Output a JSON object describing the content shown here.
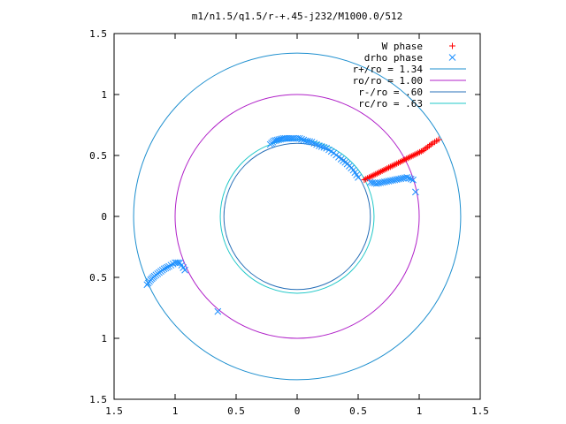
{
  "chart_data": {
    "type": "scatter",
    "title": "m1/n1.5/q1.5/r-+.45-j232/M1000.0/512",
    "xlabel": "",
    "ylabel": "",
    "xlim": [
      -1.5,
      1.5
    ],
    "ylim": [
      -1.5,
      1.5
    ],
    "x_ticks": [
      -1.5,
      -1,
      -0.5,
      0,
      0.5,
      1,
      1.5
    ],
    "y_ticks": [
      -1.5,
      -1,
      -0.5,
      0,
      0.5,
      1,
      1.5
    ],
    "x_tick_labels": [
      "1.5",
      "1",
      "0.5",
      "0",
      "0.5",
      "1",
      "1.5"
    ],
    "y_tick_labels": [
      "1.5",
      "1",
      "0.5",
      "0",
      "0.5",
      "1",
      "1.5"
    ],
    "grid": false,
    "legend_position": "top-right",
    "colors": {
      "w_phase": "#ff0000",
      "drho_phase": "#1e90ff",
      "r_plus": "#1e8fcf",
      "r_o": "#b020c8",
      "r_minus": "#2870b8",
      "r_c": "#20c8c8"
    },
    "series": [
      {
        "name": "W phase",
        "kind": "points",
        "marker": "+",
        "color": "#ff0000",
        "points": [
          [
            0.55,
            0.3
          ],
          [
            0.59,
            0.32
          ],
          [
            0.63,
            0.34
          ],
          [
            0.67,
            0.36
          ],
          [
            0.71,
            0.38
          ],
          [
            0.75,
            0.4
          ],
          [
            0.79,
            0.42
          ],
          [
            0.83,
            0.44
          ],
          [
            0.87,
            0.46
          ],
          [
            0.91,
            0.48
          ],
          [
            0.95,
            0.5
          ],
          [
            0.99,
            0.52
          ],
          [
            1.03,
            0.54
          ],
          [
            1.07,
            0.57
          ],
          [
            1.11,
            0.6
          ],
          [
            1.16,
            0.63
          ]
        ]
      },
      {
        "name": "drho phase",
        "kind": "points",
        "marker": "x",
        "color": "#1e90ff",
        "points": [
          [
            -0.22,
            0.59
          ],
          [
            -0.19,
            0.62
          ],
          [
            -0.15,
            0.63
          ],
          [
            -0.11,
            0.64
          ],
          [
            -0.07,
            0.64
          ],
          [
            -0.03,
            0.64
          ],
          [
            0.02,
            0.64
          ],
          [
            0.07,
            0.62
          ],
          [
            0.12,
            0.61
          ],
          [
            0.18,
            0.58
          ],
          [
            0.24,
            0.56
          ],
          [
            0.3,
            0.52
          ],
          [
            0.36,
            0.47
          ],
          [
            0.41,
            0.43
          ],
          [
            0.46,
            0.38
          ],
          [
            0.5,
            0.32
          ],
          [
            0.6,
            0.28
          ],
          [
            0.65,
            0.27
          ],
          [
            0.7,
            0.28
          ],
          [
            0.75,
            0.29
          ],
          [
            0.8,
            0.3
          ],
          [
            0.85,
            0.31
          ],
          [
            0.9,
            0.32
          ],
          [
            0.95,
            0.3
          ],
          [
            0.97,
            0.2
          ],
          [
            -1.23,
            -0.56
          ],
          [
            -1.2,
            -0.52
          ],
          [
            -1.17,
            -0.49
          ],
          [
            -1.13,
            -0.46
          ],
          [
            -1.09,
            -0.43
          ],
          [
            -1.05,
            -0.41
          ],
          [
            -1.0,
            -0.38
          ],
          [
            -0.96,
            -0.38
          ],
          [
            -0.92,
            -0.44
          ],
          [
            -0.65,
            -0.78
          ]
        ]
      },
      {
        "name": "r+/ro = 1.34",
        "kind": "circle",
        "radius": 1.34,
        "color": "#1e8fcf"
      },
      {
        "name": "ro/ro = 1.00",
        "kind": "circle",
        "radius": 1.0,
        "color": "#b020c8"
      },
      {
        "name": "r-/ro = .60",
        "kind": "circle",
        "radius": 0.6,
        "color": "#2870b8"
      },
      {
        "name": "rc/ro = .63",
        "kind": "circle",
        "radius": 0.63,
        "color": "#20c8c8"
      }
    ]
  }
}
